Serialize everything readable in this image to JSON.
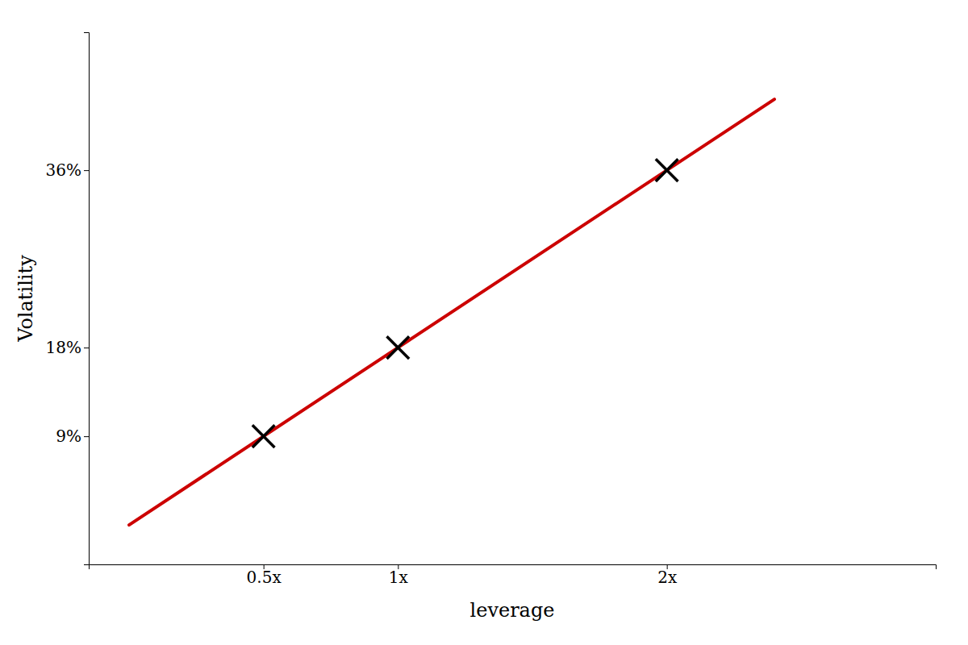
{
  "chart_data": {
    "type": "scatter",
    "xlabel": "leverage",
    "ylabel": "Volatility",
    "xlim": [
      -0.15,
      3.0
    ],
    "ylim": [
      -4,
      50
    ],
    "xticks": [
      {
        "value": 0.5,
        "label": "0.5x"
      },
      {
        "value": 1.0,
        "label": "1x"
      },
      {
        "value": 2.0,
        "label": "2x"
      }
    ],
    "yticks": [
      {
        "value": 9,
        "label": "9%"
      },
      {
        "value": 18,
        "label": "18%"
      },
      {
        "value": 36,
        "label": "36%"
      }
    ],
    "grid": false,
    "series": [
      {
        "type": "scatter",
        "marker": "x",
        "color": "#000000",
        "x": [
          0.5,
          1.0,
          2.0
        ],
        "values": [
          9,
          18,
          36
        ]
      },
      {
        "type": "line",
        "line_style": "solid",
        "color": "#cc0000",
        "x": [
          0.0,
          2.4
        ],
        "values": [
          0.0,
          43.2
        ]
      }
    ]
  }
}
